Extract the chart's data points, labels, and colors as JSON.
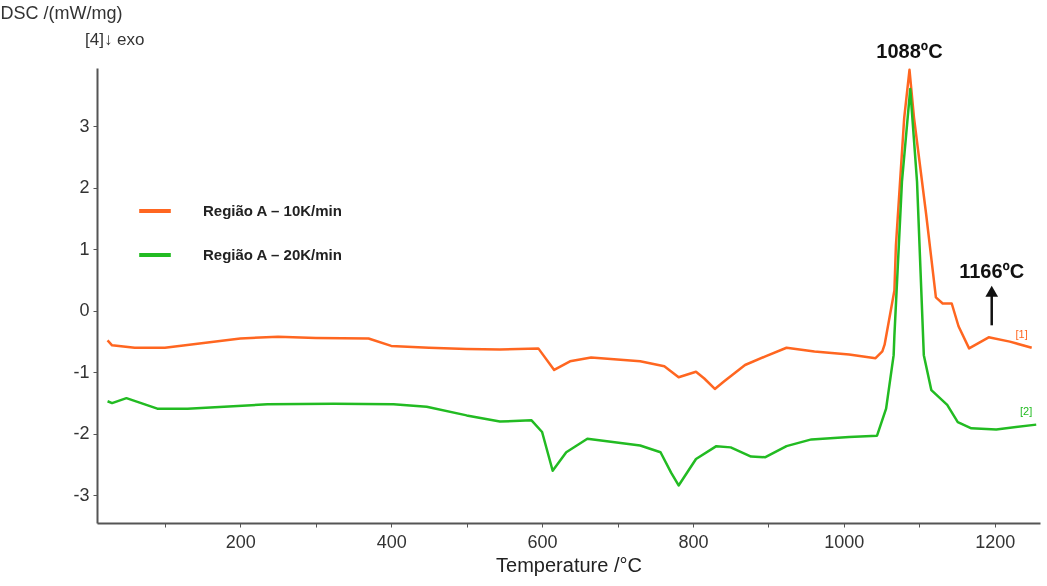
{
  "chart_data": {
    "type": "line",
    "xlabel": "Temperature /°C",
    "ylabel": "DSC /(mW/mg)",
    "xlim": [
      10,
      1260
    ],
    "ylim": [
      -3.45,
      3.95
    ],
    "xticks": [
      {
        "value": 100,
        "label": null
      },
      200,
      {
        "value": 300,
        "label": null
      },
      400,
      {
        "value": 500,
        "label": null
      },
      600,
      {
        "value": 700,
        "label": null
      },
      800,
      {
        "value": 900,
        "label": null
      },
      1000,
      {
        "value": 1100,
        "label": null
      },
      1200
    ],
    "yticks": [
      -3,
      -2,
      -1,
      0,
      1,
      2,
      3
    ],
    "legend": "top left",
    "grid": false,
    "annotations": [
      "[4]↓ exo",
      "[1]",
      "[2]",
      {
        "text": "1088ºC",
        "x": 1087,
        "y": 3.92
      },
      {
        "text": "1166ºC",
        "x": 1196,
        "y": -0.43
      }
    ],
    "series": [
      {
        "name": "Região A – 10K/min",
        "color": "#ff6620",
        "x": [
          24,
          30,
          60,
          100,
          200,
          250,
          300,
          370,
          400,
          450,
          500,
          544,
          595,
          616,
          637,
          665,
          730,
          762,
          781,
          804,
          815,
          829,
          841,
          869,
          896,
          924,
          961,
          1007,
          1042,
          1051,
          1054,
          1067,
          1069,
          1080,
          1087,
          1093,
          1109,
          1122,
          1131,
          1143,
          1152,
          1166,
          1192,
          1220,
          1249
        ],
        "values": [
          -0.48,
          -0.56,
          -0.6,
          -0.6,
          -0.45,
          -0.42,
          -0.44,
          -0.45,
          -0.57,
          -0.6,
          -0.62,
          -0.63,
          -0.61,
          -0.96,
          -0.82,
          -0.76,
          -0.82,
          -0.9,
          -1.08,
          -0.99,
          -1.1,
          -1.27,
          -1.15,
          -0.88,
          -0.74,
          -0.6,
          -0.66,
          -0.71,
          -0.77,
          -0.66,
          -0.55,
          0.33,
          1.06,
          3.14,
          3.92,
          3.14,
          1.58,
          0.22,
          0.12,
          0.12,
          -0.25,
          -0.61,
          -0.43,
          -0.5,
          -0.6
        ]
      },
      {
        "name": "Região A – 20K/min",
        "color": "#22bb22",
        "x": [
          24,
          30,
          49,
          90,
          130,
          236,
          324,
          403,
          447,
          500,
          544,
          586,
          600,
          614,
          632,
          660,
          730,
          757,
          771,
          781,
          804,
          831,
          850,
          877,
          896,
          924,
          957,
          1007,
          1044,
          1056,
          1066,
          1067,
          1077,
          1088,
          1097,
          1106,
          1116,
          1137,
          1151,
          1169,
          1202,
          1255
        ],
        "values": [
          -1.47,
          -1.5,
          -1.42,
          -1.59,
          -1.59,
          -1.52,
          -1.51,
          -1.52,
          -1.56,
          -1.7,
          -1.8,
          -1.78,
          -1.97,
          -2.6,
          -2.3,
          -2.08,
          -2.19,
          -2.3,
          -2.63,
          -2.84,
          -2.41,
          -2.2,
          -2.22,
          -2.37,
          -2.38,
          -2.2,
          -2.09,
          -2.05,
          -2.03,
          -1.59,
          -0.72,
          -0.4,
          2.1,
          3.61,
          2.1,
          -0.72,
          -1.29,
          -1.53,
          -1.81,
          -1.91,
          -1.93,
          -1.85
        ]
      }
    ]
  }
}
